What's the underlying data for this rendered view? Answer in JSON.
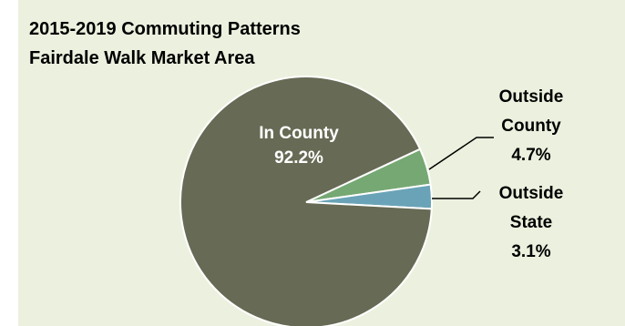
{
  "colors": {
    "background": "#ebf1de",
    "leader_line": "#000000"
  },
  "chart_data": {
    "type": "pie",
    "title_lines": [
      "2015-2019 Commuting Patterns",
      "Fairdale Walk Market Area"
    ],
    "slices": [
      {
        "label_lines": [
          "In County"
        ],
        "value_label": "92.2%",
        "value": 92.2,
        "color": "#676a54",
        "label_color": "#ffffff"
      },
      {
        "label_lines": [
          "Outside",
          "County"
        ],
        "value_label": "4.7%",
        "value": 4.7,
        "color": "#76a873",
        "label_color": "#000000"
      },
      {
        "label_lines": [
          "Outside",
          "State"
        ],
        "value_label": "3.1%",
        "value": 3.1,
        "color": "#6aa3b7",
        "label_color": "#000000"
      }
    ],
    "legend": "none"
  }
}
